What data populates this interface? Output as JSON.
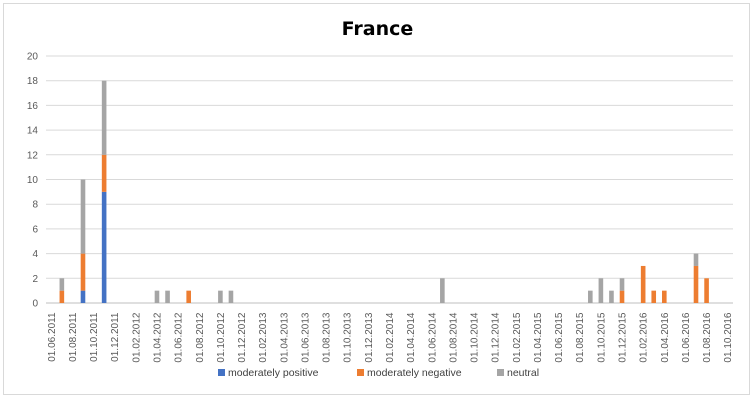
{
  "chart_data": {
    "type": "bar",
    "stacked": true,
    "title": "France",
    "xlabel": "",
    "ylabel": "",
    "ylim": [
      0,
      20
    ],
    "yticks": [
      0,
      2,
      4,
      6,
      8,
      10,
      12,
      14,
      16,
      18,
      20
    ],
    "grid": true,
    "legend_position": "bottom",
    "x_tick_labels": [
      "01.06.2011",
      "01.08.2011",
      "01.10.2011",
      "01.12.2011",
      "01.02.2012",
      "01.04.2012",
      "01.06.2012",
      "01.08.2012",
      "01.10.2012",
      "01.12.2012",
      "01.02.2013",
      "01.04.2013",
      "01.06.2013",
      "01.08.2013",
      "01.10.2013",
      "01.12.2013",
      "01.02.2014",
      "01.04.2014",
      "01.06.2014",
      "01.08.2014",
      "01.10.2014",
      "01.12.2014",
      "01.02.2015",
      "01.04.2015",
      "01.06.2015",
      "01.08.2015",
      "01.10.2015",
      "01.12.2015",
      "01.02.2016",
      "01.04.2016",
      "01.06.2016",
      "01.08.2016",
      "01.10.2016"
    ],
    "bars": [
      {
        "date": "2011-07",
        "values": [
          0,
          1,
          1
        ]
      },
      {
        "date": "2011-09",
        "values": [
          1,
          3,
          6
        ]
      },
      {
        "date": "2011-11",
        "values": [
          9,
          3,
          6
        ]
      },
      {
        "date": "2012-04",
        "values": [
          0,
          0,
          1
        ]
      },
      {
        "date": "2012-05",
        "values": [
          0,
          0,
          1
        ]
      },
      {
        "date": "2012-07",
        "values": [
          0,
          1,
          0
        ]
      },
      {
        "date": "2012-10",
        "values": [
          0,
          0,
          1
        ]
      },
      {
        "date": "2012-11",
        "values": [
          0,
          0,
          1
        ]
      },
      {
        "date": "2014-07",
        "values": [
          0,
          0,
          2
        ]
      },
      {
        "date": "2015-09",
        "values": [
          0,
          0,
          1
        ]
      },
      {
        "date": "2015-10",
        "values": [
          0,
          0,
          2
        ]
      },
      {
        "date": "2015-11",
        "values": [
          0,
          0,
          1
        ]
      },
      {
        "date": "2015-12",
        "values": [
          0,
          1,
          1
        ]
      },
      {
        "date": "2016-02",
        "values": [
          0,
          3,
          0
        ]
      },
      {
        "date": "2016-03",
        "values": [
          0,
          1,
          0
        ]
      },
      {
        "date": "2016-04",
        "values": [
          0,
          1,
          0
        ]
      },
      {
        "date": "2016-07",
        "values": [
          0,
          3,
          1
        ]
      },
      {
        "date": "2016-08",
        "values": [
          0,
          2,
          0
        ]
      }
    ],
    "series": [
      {
        "name": "moderately positive",
        "color": "#4472c4"
      },
      {
        "name": "moderately negative",
        "color": "#ed7d31"
      },
      {
        "name": "neutral",
        "color": "#a5a5a5"
      }
    ]
  }
}
